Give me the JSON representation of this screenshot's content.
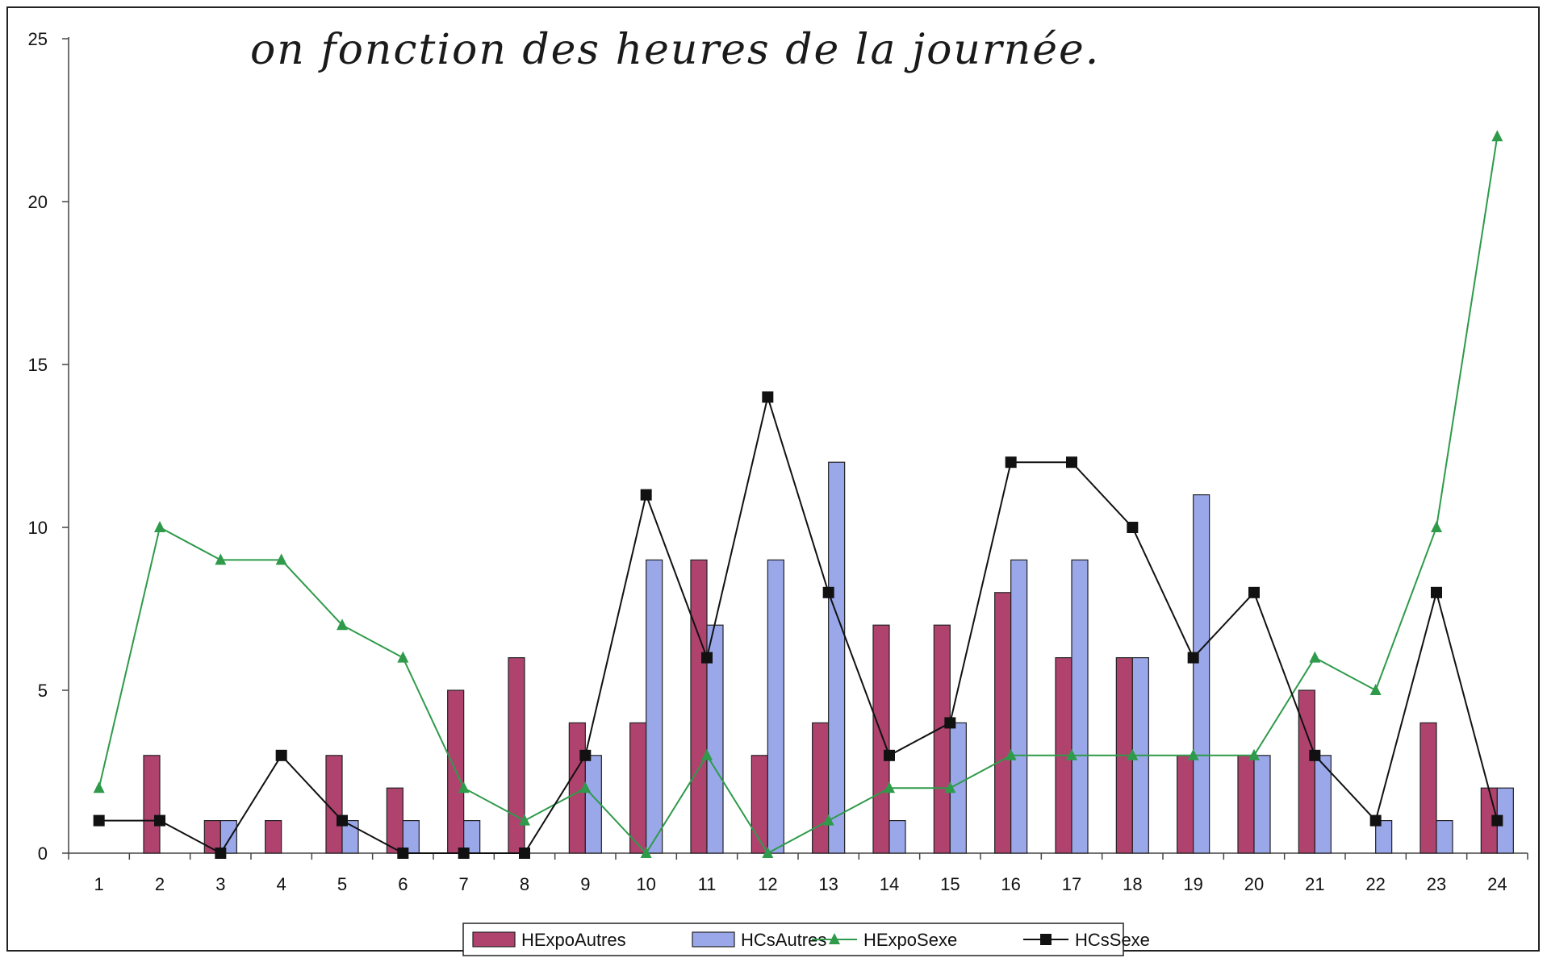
{
  "chart_data": {
    "type": "bar",
    "title": "on fonction des heures de la journée.",
    "categories": [
      "1",
      "2",
      "3",
      "4",
      "5",
      "6",
      "7",
      "8",
      "9",
      "10",
      "11",
      "12",
      "13",
      "14",
      "15",
      "16",
      "17",
      "18",
      "19",
      "20",
      "21",
      "22",
      "23",
      "24"
    ],
    "ylim": [
      0,
      25
    ],
    "yticks": [
      0,
      5,
      10,
      15,
      20,
      25
    ],
    "grid": false,
    "legend_position": "bottom",
    "series": [
      {
        "name": "HExpoAutres",
        "kind": "bar",
        "color": "#b0436e",
        "values": [
          0,
          3,
          1,
          1,
          3,
          2,
          5,
          6,
          4,
          4,
          9,
          3,
          4,
          7,
          7,
          8,
          6,
          6,
          3,
          3,
          5,
          0,
          4,
          2
        ]
      },
      {
        "name": "HCsAutres",
        "kind": "bar",
        "color": "#9aa8ea",
        "values": [
          0,
          0,
          1,
          0,
          1,
          1,
          1,
          0,
          3,
          9,
          7,
          9,
          12,
          1,
          4,
          9,
          9,
          6,
          11,
          3,
          3,
          1,
          1,
          2
        ]
      },
      {
        "name": "HExpoSexe",
        "kind": "line",
        "marker": "triangle",
        "color": "#2e9a4a",
        "values": [
          2,
          10,
          9,
          9,
          7,
          6,
          2,
          1,
          2,
          0,
          3,
          0,
          1,
          2,
          2,
          3,
          3,
          3,
          3,
          3,
          6,
          5,
          10,
          22
        ]
      },
      {
        "name": "HCsSexe",
        "kind": "line",
        "marker": "square",
        "color": "#111111",
        "values": [
          1,
          1,
          0,
          3,
          1,
          0,
          0,
          0,
          3,
          11,
          6,
          14,
          8,
          3,
          4,
          12,
          12,
          10,
          6,
          8,
          3,
          1,
          8,
          1
        ]
      }
    ]
  }
}
